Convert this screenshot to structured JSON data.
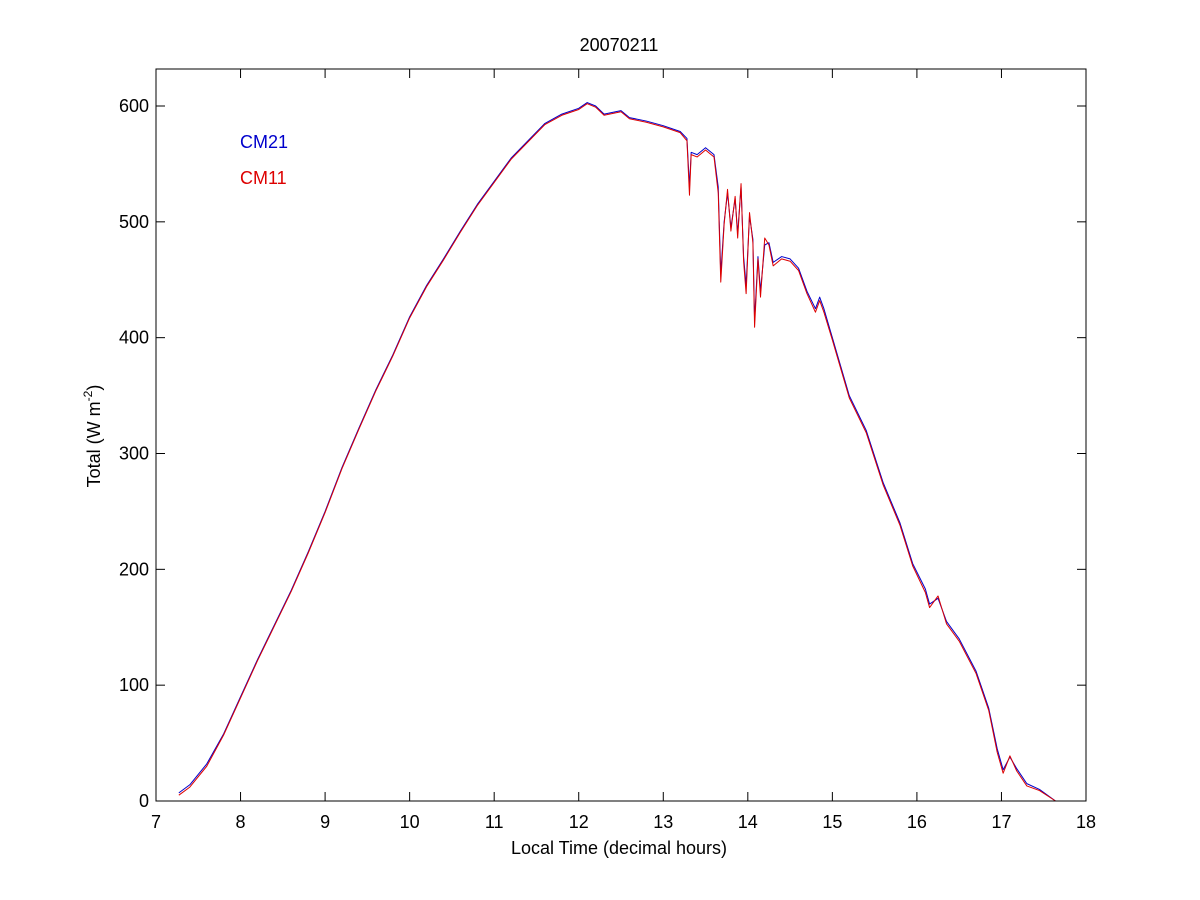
{
  "chart_data": {
    "type": "line",
    "title": "20070211",
    "xlabel": "Local Time (decimal hours)",
    "ylabel": {
      "prefix": "Total (W m",
      "exponent": "-2",
      "suffix": ")"
    },
    "xlim": [
      7,
      18
    ],
    "ylim": [
      0,
      630
    ],
    "xticks": [
      7,
      8,
      9,
      10,
      11,
      12,
      13,
      14,
      15,
      16,
      17,
      18
    ],
    "yticks": [
      0,
      100,
      200,
      300,
      400,
      500,
      600
    ],
    "grid": false,
    "legend_position": "top-left",
    "series": [
      {
        "name": "CM21",
        "color": "#0000cc",
        "points": [
          [
            7.27,
            7
          ],
          [
            7.4,
            14
          ],
          [
            7.6,
            32
          ],
          [
            7.8,
            58
          ],
          [
            8.0,
            90
          ],
          [
            8.2,
            122
          ],
          [
            8.4,
            152
          ],
          [
            8.6,
            182
          ],
          [
            8.8,
            215
          ],
          [
            9.0,
            250
          ],
          [
            9.2,
            288
          ],
          [
            9.4,
            322
          ],
          [
            9.6,
            355
          ],
          [
            9.8,
            385
          ],
          [
            10.0,
            418
          ],
          [
            10.2,
            445
          ],
          [
            10.4,
            468
          ],
          [
            10.6,
            492
          ],
          [
            10.8,
            515
          ],
          [
            11.0,
            535
          ],
          [
            11.2,
            555
          ],
          [
            11.4,
            570
          ],
          [
            11.6,
            585
          ],
          [
            11.8,
            593
          ],
          [
            12.0,
            598
          ],
          [
            12.1,
            603
          ],
          [
            12.2,
            600
          ],
          [
            12.3,
            593
          ],
          [
            12.5,
            596
          ],
          [
            12.6,
            590
          ],
          [
            12.8,
            587
          ],
          [
            13.0,
            583
          ],
          [
            13.2,
            578
          ],
          [
            13.28,
            572
          ],
          [
            13.31,
            530
          ],
          [
            13.33,
            560
          ],
          [
            13.4,
            558
          ],
          [
            13.5,
            564
          ],
          [
            13.6,
            558
          ],
          [
            13.65,
            530
          ],
          [
            13.68,
            455
          ],
          [
            13.72,
            500
          ],
          [
            13.76,
            525
          ],
          [
            13.8,
            495
          ],
          [
            13.85,
            520
          ],
          [
            13.88,
            490
          ],
          [
            13.92,
            530
          ],
          [
            13.95,
            470
          ],
          [
            13.98,
            445
          ],
          [
            14.02,
            505
          ],
          [
            14.06,
            485
          ],
          [
            14.08,
            415
          ],
          [
            14.12,
            470
          ],
          [
            14.15,
            440
          ],
          [
            14.2,
            480
          ],
          [
            14.25,
            482
          ],
          [
            14.3,
            465
          ],
          [
            14.4,
            470
          ],
          [
            14.5,
            468
          ],
          [
            14.6,
            460
          ],
          [
            14.7,
            440
          ],
          [
            14.8,
            425
          ],
          [
            14.85,
            435
          ],
          [
            14.9,
            425
          ],
          [
            15.0,
            400
          ],
          [
            15.1,
            375
          ],
          [
            15.2,
            350
          ],
          [
            15.4,
            320
          ],
          [
            15.6,
            275
          ],
          [
            15.8,
            240
          ],
          [
            15.95,
            205
          ],
          [
            16.1,
            183
          ],
          [
            16.15,
            170
          ],
          [
            16.25,
            175
          ],
          [
            16.35,
            155
          ],
          [
            16.5,
            140
          ],
          [
            16.7,
            112
          ],
          [
            16.85,
            80
          ],
          [
            16.95,
            45
          ],
          [
            17.02,
            27
          ],
          [
            17.1,
            38
          ],
          [
            17.18,
            28
          ],
          [
            17.3,
            15
          ],
          [
            17.45,
            10
          ],
          [
            17.64,
            0
          ]
        ]
      },
      {
        "name": "CM11",
        "color": "#dd0000",
        "points": [
          [
            7.27,
            5
          ],
          [
            7.4,
            12
          ],
          [
            7.6,
            30
          ],
          [
            7.8,
            57
          ],
          [
            8.0,
            89
          ],
          [
            8.2,
            121
          ],
          [
            8.4,
            151
          ],
          [
            8.6,
            181
          ],
          [
            8.8,
            214
          ],
          [
            9.0,
            249
          ],
          [
            9.2,
            287
          ],
          [
            9.4,
            321
          ],
          [
            9.6,
            354
          ],
          [
            9.8,
            384
          ],
          [
            10.0,
            417
          ],
          [
            10.2,
            444
          ],
          [
            10.4,
            467
          ],
          [
            10.6,
            491
          ],
          [
            10.8,
            514
          ],
          [
            11.0,
            534
          ],
          [
            11.2,
            554
          ],
          [
            11.4,
            569
          ],
          [
            11.6,
            584
          ],
          [
            11.8,
            592
          ],
          [
            12.0,
            597
          ],
          [
            12.1,
            602
          ],
          [
            12.2,
            599
          ],
          [
            12.3,
            592
          ],
          [
            12.5,
            595
          ],
          [
            12.6,
            589
          ],
          [
            12.8,
            586
          ],
          [
            13.0,
            582
          ],
          [
            13.2,
            577
          ],
          [
            13.28,
            570
          ],
          [
            13.31,
            523
          ],
          [
            13.33,
            558
          ],
          [
            13.4,
            556
          ],
          [
            13.5,
            562
          ],
          [
            13.6,
            556
          ],
          [
            13.65,
            525
          ],
          [
            13.68,
            448
          ],
          [
            13.72,
            498
          ],
          [
            13.76,
            528
          ],
          [
            13.8,
            492
          ],
          [
            13.85,
            522
          ],
          [
            13.88,
            486
          ],
          [
            13.92,
            533
          ],
          [
            13.95,
            466
          ],
          [
            13.98,
            438
          ],
          [
            14.02,
            508
          ],
          [
            14.06,
            482
          ],
          [
            14.08,
            409
          ],
          [
            14.12,
            468
          ],
          [
            14.15,
            435
          ],
          [
            14.2,
            486
          ],
          [
            14.25,
            480
          ],
          [
            14.3,
            462
          ],
          [
            14.4,
            468
          ],
          [
            14.5,
            466
          ],
          [
            14.6,
            458
          ],
          [
            14.7,
            438
          ],
          [
            14.8,
            422
          ],
          [
            14.85,
            432
          ],
          [
            14.9,
            422
          ],
          [
            15.0,
            398
          ],
          [
            15.1,
            373
          ],
          [
            15.2,
            348
          ],
          [
            15.4,
            318
          ],
          [
            15.6,
            273
          ],
          [
            15.8,
            238
          ],
          [
            15.95,
            203
          ],
          [
            16.1,
            180
          ],
          [
            16.15,
            167
          ],
          [
            16.25,
            177
          ],
          [
            16.35,
            153
          ],
          [
            16.5,
            138
          ],
          [
            16.7,
            110
          ],
          [
            16.85,
            78
          ],
          [
            16.95,
            42
          ],
          [
            17.02,
            24
          ],
          [
            17.1,
            39
          ],
          [
            17.18,
            26
          ],
          [
            17.3,
            13
          ],
          [
            17.45,
            9
          ],
          [
            17.64,
            0
          ]
        ]
      }
    ]
  }
}
